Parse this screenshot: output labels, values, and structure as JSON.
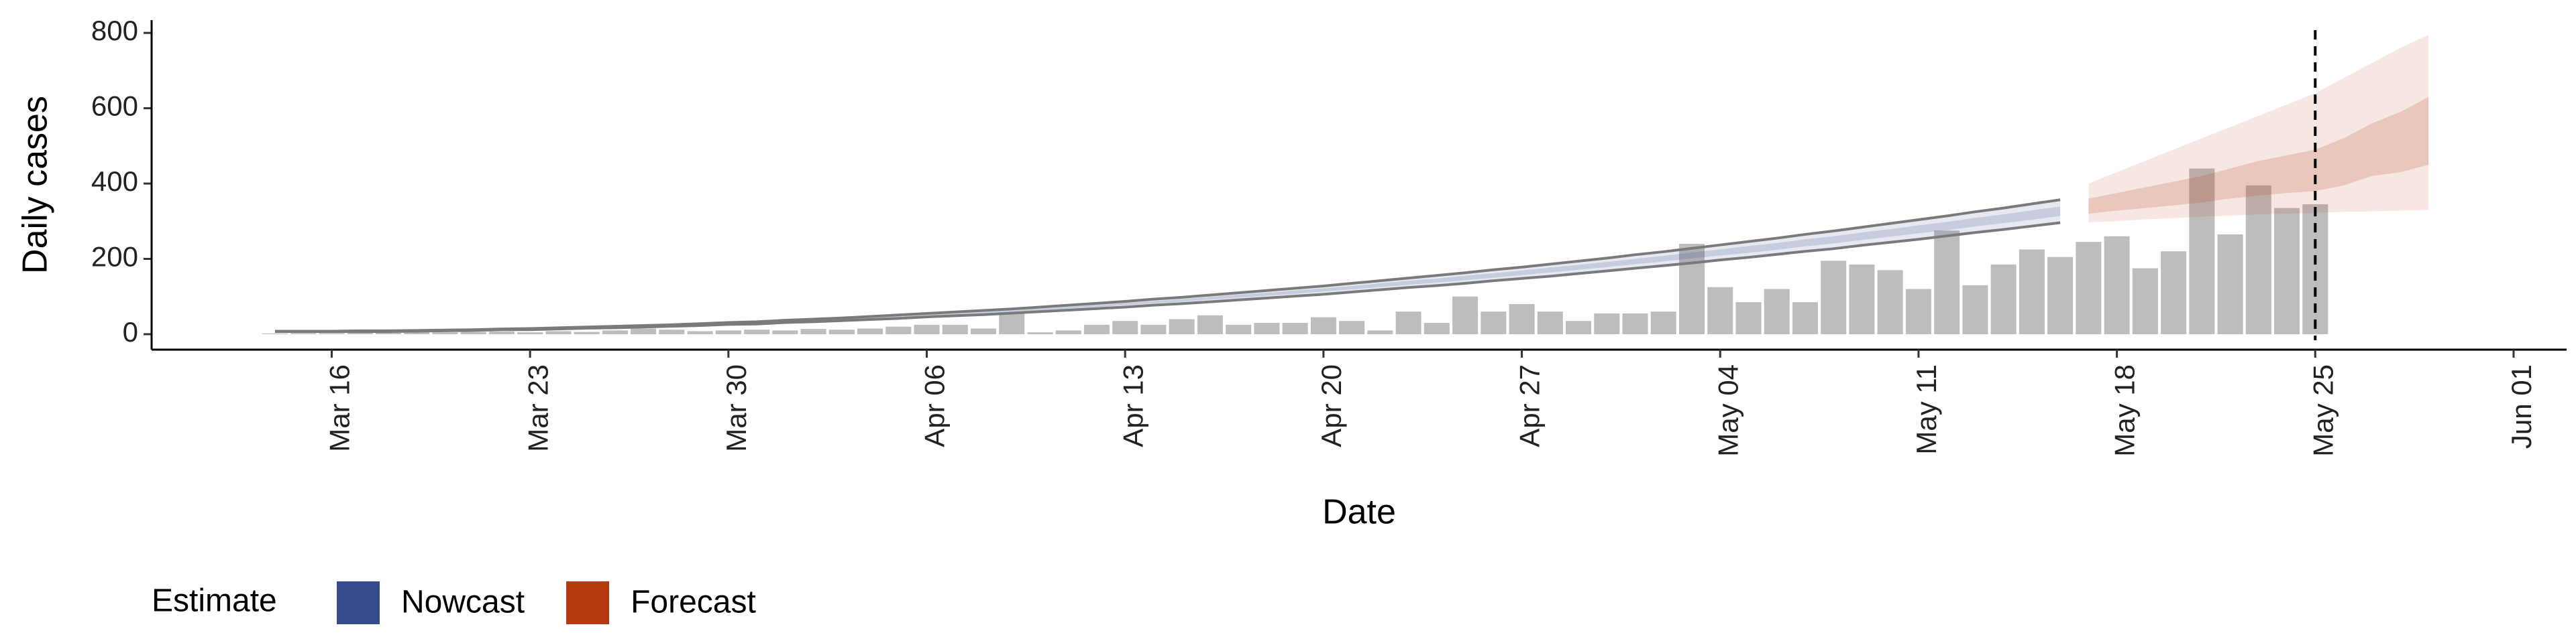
{
  "chart_data": {
    "type": "bar",
    "x_label": "Date",
    "y_label": "Daily cases",
    "legend_title": "Estimate",
    "bar_color": "#bdbdbd",
    "ylim": [
      -41,
      834
    ],
    "yticks": [
      0,
      200,
      400,
      600,
      800
    ],
    "categories": [
      null,
      null,
      "Mar 16",
      null,
      null,
      null,
      null,
      null,
      null,
      "Mar 23",
      null,
      null,
      null,
      null,
      null,
      null,
      "Mar 30",
      null,
      null,
      null,
      null,
      null,
      null,
      "Apr 06",
      null,
      null,
      null,
      null,
      null,
      null,
      "Apr 13",
      null,
      null,
      null,
      null,
      null,
      null,
      "Apr 20",
      null,
      null,
      null,
      null,
      null,
      null,
      "Apr 27",
      null,
      null,
      null,
      null,
      null,
      null,
      "May 04",
      null,
      null,
      null,
      null,
      null,
      null,
      "May 11",
      null,
      null,
      null,
      null,
      null,
      null,
      "May 18",
      null,
      null,
      null,
      null,
      null,
      null,
      "May 25",
      null,
      null,
      null,
      null,
      null,
      null,
      "Jun 01"
    ],
    "values": [
      2,
      3,
      3,
      5,
      4,
      6,
      5,
      6,
      7,
      5,
      8,
      6,
      10,
      15,
      12,
      8,
      10,
      12,
      10,
      14,
      12,
      15,
      20,
      25,
      25,
      15,
      55,
      5,
      10,
      25,
      35,
      25,
      40,
      50,
      25,
      30,
      30,
      45,
      35,
      10,
      60,
      30,
      100,
      60,
      80,
      60,
      35,
      55,
      55,
      60,
      240,
      125,
      85,
      120,
      85,
      195,
      185,
      170,
      120,
      275,
      130,
      185,
      225,
      205,
      245,
      260,
      175,
      220,
      440,
      265,
      395,
      335,
      345,
      null,
      null,
      null,
      null,
      null,
      null,
      null
    ],
    "series": [
      {
        "name": "Nowcast",
        "color": "#354b8c",
        "upper_90": [
          8,
          8,
          8,
          9,
          9,
          10,
          11,
          12,
          14,
          15,
          17,
          19,
          21,
          23,
          25,
          28,
          31,
          33,
          37,
          40,
          43,
          47,
          51,
          55,
          59,
          63,
          67,
          72,
          77,
          82,
          87,
          93,
          98,
          104,
          110,
          116,
          122,
          128,
          135,
          142,
          149,
          156,
          163,
          171,
          178,
          186,
          194,
          202,
          211,
          219,
          228,
          237,
          246,
          255,
          265,
          274,
          284,
          294,
          304,
          314,
          325,
          335,
          346,
          357,
          null,
          null,
          null,
          null,
          null,
          null,
          null,
          null,
          null,
          null,
          null,
          null,
          null,
          null,
          null,
          null
        ],
        "lower_90": [
          7,
          7,
          7,
          7,
          7,
          8,
          9,
          10,
          12,
          12,
          14,
          16,
          17,
          19,
          21,
          23,
          26,
          27,
          31,
          33,
          36,
          39,
          42,
          46,
          49,
          52,
          56,
          60,
          64,
          68,
          72,
          77,
          81,
          86,
          91,
          96,
          101,
          106,
          112,
          118,
          124,
          129,
          135,
          142,
          148,
          154,
          161,
          168,
          175,
          182,
          189,
          197,
          204,
          212,
          220,
          227,
          236,
          244,
          252,
          261,
          270,
          278,
          287,
          296,
          null,
          null,
          null,
          null,
          null,
          null,
          null,
          null,
          null,
          null,
          null,
          null,
          null,
          null,
          null,
          null
        ],
        "lower_50": [
          7,
          7,
          7,
          8,
          8,
          9,
          10,
          11,
          12,
          13,
          15,
          17,
          18,
          20,
          22,
          25,
          27,
          29,
          33,
          35,
          38,
          41,
          45,
          48,
          52,
          55,
          59,
          63,
          68,
          72,
          77,
          82,
          86,
          92,
          97,
          102,
          107,
          113,
          119,
          125,
          131,
          137,
          143,
          150,
          157,
          164,
          171,
          178,
          186,
          193,
          201,
          209,
          216,
          224,
          233,
          241,
          250,
          259,
          268,
          276,
          286,
          295,
          304,
          314,
          null,
          null,
          null,
          null,
          null,
          null,
          null,
          null,
          null,
          null,
          null,
          null,
          null,
          null,
          null,
          null
        ],
        "upper_50": [
          8,
          8,
          8,
          9,
          9,
          10,
          10,
          11,
          13,
          14,
          16,
          18,
          20,
          22,
          24,
          27,
          29,
          31,
          35,
          38,
          41,
          45,
          48,
          52,
          56,
          60,
          64,
          68,
          73,
          78,
          83,
          88,
          93,
          99,
          105,
          110,
          116,
          122,
          128,
          135,
          142,
          148,
          155,
          162,
          169,
          177,
          184,
          192,
          200,
          208,
          217,
          225,
          234,
          242,
          252,
          260,
          270,
          279,
          289,
          298,
          309,
          318,
          329,
          339,
          null,
          null,
          null,
          null,
          null,
          null,
          null,
          null,
          null,
          null,
          null,
          null,
          null,
          null,
          null,
          null
        ]
      },
      {
        "name": "Forecast",
        "color": "#b5390f",
        "upper_90": [
          null,
          null,
          null,
          null,
          null,
          null,
          null,
          null,
          null,
          null,
          null,
          null,
          null,
          null,
          null,
          null,
          null,
          null,
          null,
          null,
          null,
          null,
          null,
          null,
          null,
          null,
          null,
          null,
          null,
          null,
          null,
          null,
          null,
          null,
          null,
          null,
          null,
          null,
          null,
          null,
          null,
          null,
          null,
          null,
          null,
          null,
          null,
          null,
          null,
          null,
          null,
          null,
          null,
          null,
          null,
          null,
          null,
          null,
          null,
          null,
          null,
          null,
          null,
          null,
          400,
          430,
          460,
          490,
          520,
          550,
          580,
          610,
          640,
          680,
          720,
          760,
          795,
          null,
          null,
          null
        ],
        "lower_90": [
          null,
          null,
          null,
          null,
          null,
          null,
          null,
          null,
          null,
          null,
          null,
          null,
          null,
          null,
          null,
          null,
          null,
          null,
          null,
          null,
          null,
          null,
          null,
          null,
          null,
          null,
          null,
          null,
          null,
          null,
          null,
          null,
          null,
          null,
          null,
          null,
          null,
          null,
          null,
          null,
          null,
          null,
          null,
          null,
          null,
          null,
          null,
          null,
          null,
          null,
          null,
          null,
          null,
          null,
          null,
          null,
          null,
          null,
          null,
          null,
          null,
          null,
          null,
          null,
          297,
          300,
          305,
          308,
          312,
          315,
          318,
          320,
          322,
          325,
          326,
          328,
          330,
          null,
          null,
          null
        ],
        "lower_50": [
          null,
          null,
          null,
          null,
          null,
          null,
          null,
          null,
          null,
          null,
          null,
          null,
          null,
          null,
          null,
          null,
          null,
          null,
          null,
          null,
          null,
          null,
          null,
          null,
          null,
          null,
          null,
          null,
          null,
          null,
          null,
          null,
          null,
          null,
          null,
          null,
          null,
          null,
          null,
          null,
          null,
          null,
          null,
          null,
          null,
          null,
          null,
          null,
          null,
          null,
          null,
          null,
          null,
          null,
          null,
          null,
          null,
          null,
          null,
          null,
          null,
          null,
          null,
          null,
          320,
          328,
          335,
          342,
          350,
          360,
          368,
          375,
          380,
          395,
          420,
          430,
          450,
          null,
          null,
          null
        ],
        "upper_50": [
          null,
          null,
          null,
          null,
          null,
          null,
          null,
          null,
          null,
          null,
          null,
          null,
          null,
          null,
          null,
          null,
          null,
          null,
          null,
          null,
          null,
          null,
          null,
          null,
          null,
          null,
          null,
          null,
          null,
          null,
          null,
          null,
          null,
          null,
          null,
          null,
          null,
          null,
          null,
          null,
          null,
          null,
          null,
          null,
          null,
          null,
          null,
          null,
          null,
          null,
          null,
          null,
          null,
          null,
          null,
          null,
          null,
          null,
          null,
          null,
          null,
          null,
          null,
          null,
          360,
          375,
          390,
          405,
          420,
          440,
          460,
          475,
          490,
          520,
          560,
          590,
          630,
          null,
          null,
          null
        ]
      }
    ]
  }
}
